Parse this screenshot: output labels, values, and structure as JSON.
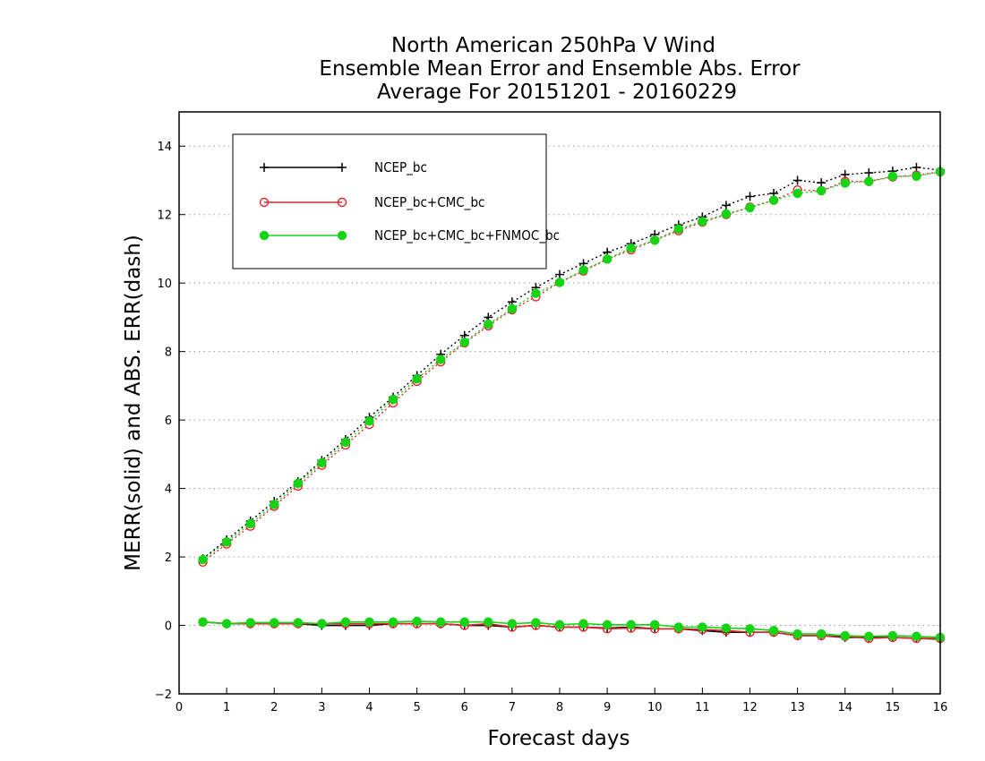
{
  "chart_data": {
    "type": "line",
    "title": [
      "North American 250hPa V Wind",
      "Ensemble Mean Error and Ensemble Abs. Error",
      "Average For 20151201 - 20160229"
    ],
    "xlabel": "Forecast days",
    "ylabel": "MERR(solid) and ABS. ERR(dash)",
    "xlim": [
      0,
      16
    ],
    "ylim": [
      -2,
      15
    ],
    "xticks": [
      0,
      1,
      2,
      3,
      4,
      5,
      6,
      7,
      8,
      9,
      10,
      11,
      12,
      13,
      14,
      15,
      16
    ],
    "yticks": [
      -2,
      0,
      2,
      4,
      6,
      8,
      10,
      12,
      14
    ],
    "grid": "horizontal dotted",
    "legend_position": "top-left",
    "x": [
      0.5,
      1,
      1.5,
      2,
      2.5,
      3,
      3.5,
      4,
      4.5,
      5,
      5.5,
      6,
      6.5,
      7,
      7.5,
      8,
      8.5,
      9,
      9.5,
      10,
      10.5,
      11,
      11.5,
      12,
      12.5,
      13,
      13.5,
      14,
      14.5,
      15,
      15.5,
      16
    ],
    "series": [
      {
        "name": "NCEP_bc",
        "color": "#000000",
        "marker": "plus",
        "abs_err": [
          1.95,
          2.5,
          3.05,
          3.62,
          4.2,
          4.82,
          5.43,
          6.08,
          6.67,
          7.3,
          7.92,
          8.47,
          9.0,
          9.45,
          9.87,
          10.25,
          10.57,
          10.9,
          11.15,
          11.42,
          11.7,
          11.93,
          12.27,
          12.53,
          12.62,
          13.0,
          12.93,
          13.17,
          13.22,
          13.27,
          13.38,
          13.3
        ],
        "mean_err": [
          0.1,
          0.05,
          0.05,
          0.05,
          0.05,
          0.0,
          0.0,
          0.0,
          0.05,
          0.05,
          0.05,
          0.0,
          0.0,
          -0.05,
          0.0,
          -0.05,
          -0.05,
          -0.08,
          -0.05,
          -0.1,
          -0.1,
          -0.15,
          -0.2,
          -0.2,
          -0.2,
          -0.3,
          -0.3,
          -0.35,
          -0.35,
          -0.35,
          -0.38,
          -0.4
        ]
      },
      {
        "name": "NCEP_bc+CMC_bc",
        "color": "#e8242c",
        "marker": "open-circle",
        "abs_err": [
          1.85,
          2.38,
          2.9,
          3.48,
          4.07,
          4.68,
          5.27,
          5.87,
          6.5,
          7.13,
          7.7,
          8.25,
          8.75,
          9.22,
          9.6,
          10.02,
          10.35,
          10.7,
          10.97,
          11.25,
          11.53,
          11.78,
          12.0,
          12.22,
          12.42,
          12.72,
          12.7,
          12.97,
          12.97,
          13.1,
          13.15,
          13.25
        ],
        "mean_err": [
          0.1,
          0.05,
          0.05,
          0.05,
          0.05,
          0.05,
          0.05,
          0.05,
          0.05,
          0.05,
          0.05,
          0.0,
          0.05,
          -0.05,
          0.0,
          -0.05,
          -0.05,
          -0.1,
          -0.08,
          -0.1,
          -0.1,
          -0.12,
          -0.15,
          -0.2,
          -0.2,
          -0.3,
          -0.3,
          -0.32,
          -0.38,
          -0.35,
          -0.38,
          -0.38
        ]
      },
      {
        "name": "NCEP_bc+CMC_bc+FNMOC_bc",
        "color": "#14d414",
        "marker": "filled-circle",
        "abs_err": [
          1.92,
          2.44,
          2.97,
          3.53,
          4.15,
          4.75,
          5.35,
          5.97,
          6.6,
          7.2,
          7.77,
          8.27,
          8.8,
          9.25,
          9.7,
          10.02,
          10.38,
          10.7,
          11.02,
          11.25,
          11.58,
          11.8,
          12.02,
          12.2,
          12.42,
          12.62,
          12.7,
          12.92,
          12.97,
          13.12,
          13.12,
          13.25
        ],
        "mean_err": [
          0.1,
          0.05,
          0.08,
          0.08,
          0.08,
          0.05,
          0.1,
          0.1,
          0.1,
          0.12,
          0.1,
          0.1,
          0.1,
          0.05,
          0.08,
          0.02,
          0.05,
          0.02,
          0.02,
          0.02,
          -0.05,
          -0.05,
          -0.08,
          -0.1,
          -0.15,
          -0.25,
          -0.25,
          -0.3,
          -0.32,
          -0.3,
          -0.32,
          -0.35
        ]
      }
    ]
  }
}
